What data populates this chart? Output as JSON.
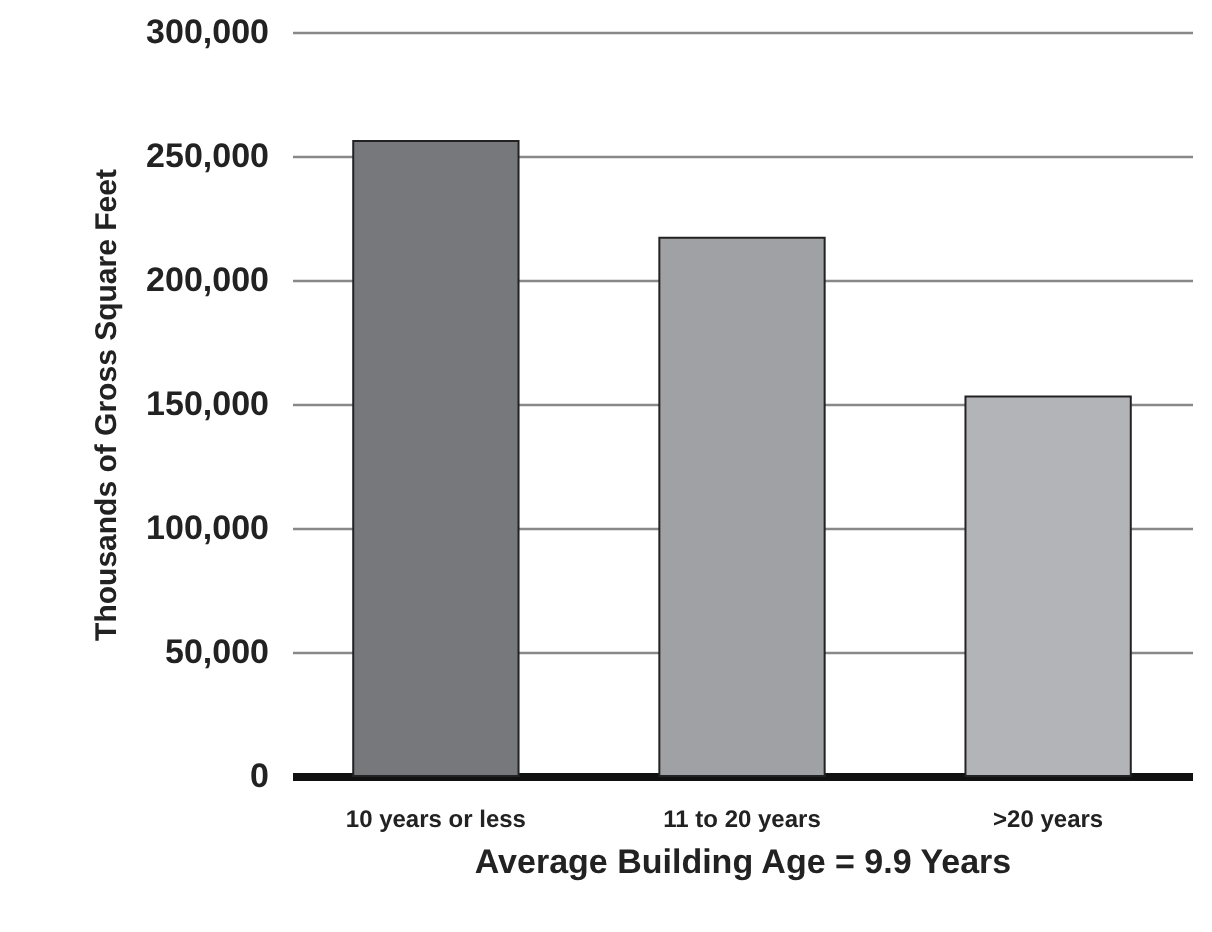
{
  "chart_data": {
    "type": "bar",
    "categories": [
      "10 years or less",
      "11 to 20 years",
      ">20 years"
    ],
    "values": [
      256000,
      217000,
      153000
    ],
    "colors": [
      "#77787c",
      "#a0a1a5",
      "#b3b4b7"
    ],
    "xlabel": "Average Building Age = 9.9 Years",
    "ylabel": "Thousands of Gross Square Feet",
    "ylim": [
      0,
      300000
    ],
    "yticks": [
      0,
      {
        "value": 50000,
        "label": "50,000"
      },
      {
        "value": 100000,
        "label": "100,000"
      },
      {
        "value": 150000,
        "label": "150,000"
      },
      {
        "value": 200000,
        "label": "200,000"
      },
      {
        "value": 250000,
        "label": "250,000"
      },
      {
        "value": 300000,
        "label": "300,000"
      }
    ],
    "grid": "y"
  }
}
